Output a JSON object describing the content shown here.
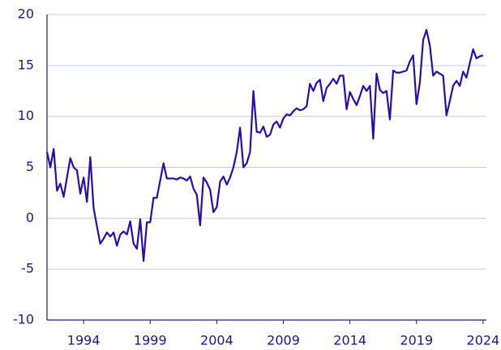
{
  "chart_data": {
    "type": "line",
    "x": [
      1991.25,
      1991.5,
      1991.75,
      1992,
      1992.25,
      1992.5,
      1992.75,
      1993,
      1993.25,
      1993.5,
      1993.75,
      1994,
      1994.25,
      1994.5,
      1994.75,
      1995,
      1995.25,
      1995.5,
      1995.75,
      1996,
      1996.25,
      1996.5,
      1996.75,
      1997,
      1997.25,
      1997.5,
      1997.75,
      1998,
      1998.25,
      1998.5,
      1998.75,
      1999,
      1999.25,
      1999.5,
      1999.75,
      2000,
      2000.25,
      2000.5,
      2000.75,
      2001,
      2001.25,
      2001.5,
      2001.75,
      2002,
      2002.25,
      2002.5,
      2002.75,
      2003,
      2003.25,
      2003.5,
      2003.75,
      2004,
      2004.25,
      2004.5,
      2004.75,
      2005,
      2005.25,
      2005.5,
      2005.75,
      2006,
      2006.25,
      2006.5,
      2006.75,
      2007,
      2007.25,
      2007.5,
      2007.75,
      2008,
      2008.25,
      2008.5,
      2008.75,
      2009,
      2009.25,
      2009.5,
      2009.75,
      2010,
      2010.25,
      2010.5,
      2010.75,
      2011,
      2011.25,
      2011.5,
      2011.75,
      2012,
      2012.25,
      2012.5,
      2012.75,
      2013,
      2013.25,
      2013.5,
      2013.75,
      2014,
      2014.25,
      2014.5,
      2014.75,
      2015,
      2015.25,
      2015.5,
      2015.75,
      2016,
      2016.25,
      2016.5,
      2016.75,
      2017,
      2017.25,
      2017.5,
      2017.75,
      2018,
      2018.25,
      2018.5,
      2018.75,
      2019,
      2019.25,
      2019.5,
      2019.75,
      2020,
      2020.25,
      2020.5,
      2020.75,
      2021,
      2021.25,
      2021.5,
      2021.75,
      2022,
      2022.25,
      2022.5,
      2022.75,
      2023,
      2023.25,
      2023.5,
      2023.75,
      2024
    ],
    "series": [
      {
        "color": "#2a0cb0",
        "values": [
          6.5,
          5.0,
          6.8,
          2.7,
          3.4,
          2.1,
          4.0,
          5.9,
          5.0,
          4.7,
          2.4,
          4.0,
          1.6,
          6.0,
          1.0,
          -0.8,
          -2.5,
          -2.0,
          -1.4,
          -1.8,
          -1.4,
          -2.7,
          -1.6,
          -1.3,
          -1.6,
          -0.3,
          -2.5,
          -3.0,
          -0.1,
          -4.2,
          -0.4,
          -0.4,
          2.0,
          2.0,
          3.7,
          5.4,
          3.9,
          3.9,
          3.9,
          3.8,
          4.0,
          3.9,
          3.7,
          4.1,
          2.9,
          2.3,
          -0.7,
          4.0,
          3.5,
          2.8,
          0.6,
          1.1,
          3.6,
          4.1,
          3.3,
          4.0,
          5.0,
          6.5,
          8.9,
          5.0,
          5.4,
          6.5,
          12.5,
          8.5,
          8.4,
          9.0,
          8.0,
          8.2,
          9.2,
          9.5,
          8.9,
          9.8,
          10.2,
          10.1,
          10.5,
          10.8,
          10.6,
          10.7,
          11.0,
          13.2,
          12.5,
          13.3,
          13.6,
          11.5,
          12.8,
          13.2,
          13.7,
          13.2,
          14.0,
          14.0,
          10.7,
          12.4,
          11.7,
          11.1,
          12.0,
          13.0,
          12.5,
          13.0,
          7.8,
          14.2,
          12.6,
          12.3,
          12.5,
          9.7,
          14.5,
          14.3,
          14.3,
          14.4,
          14.5,
          15.4,
          16.0,
          11.2,
          13.3,
          17.5,
          18.5,
          17.0,
          14.0,
          14.4,
          14.2,
          14.0,
          10.1,
          11.5,
          13.0,
          13.5,
          13.0,
          14.4,
          13.8,
          15.2,
          16.6,
          15.7,
          15.9,
          16.0
        ]
      }
    ],
    "xlim": [
      1991.25,
      2024.25
    ],
    "xticks": [
      1994,
      1999,
      2004,
      2009,
      2014,
      2019,
      2024
    ],
    "ylim": [
      -10,
      20
    ],
    "yticks": [
      -10,
      -5,
      0,
      5,
      10,
      15,
      20
    ],
    "grid": true
  }
}
